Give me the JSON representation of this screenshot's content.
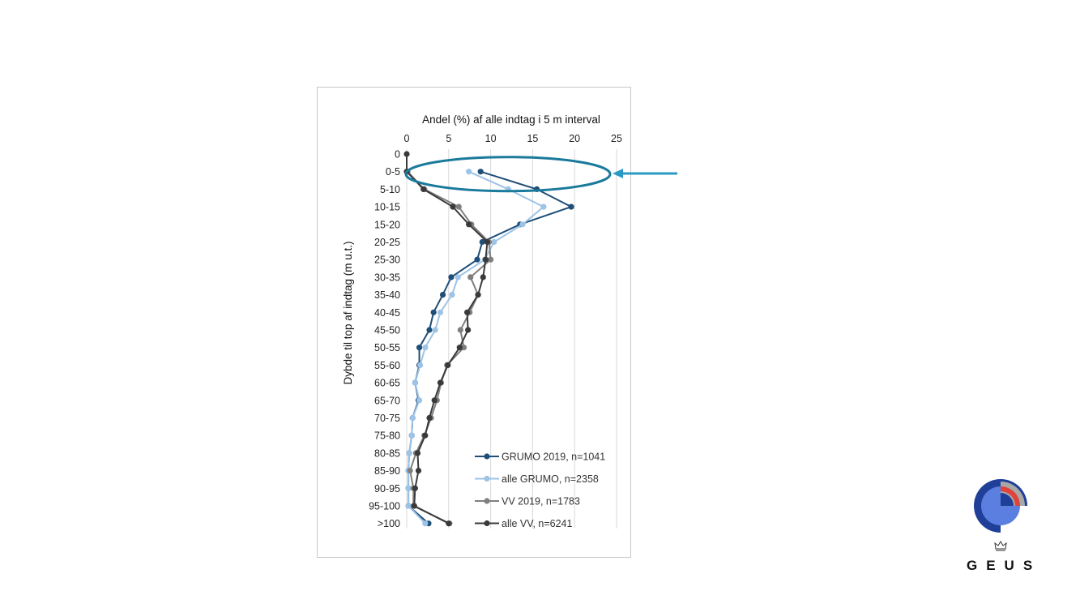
{
  "chart_data": {
    "type": "line",
    "orientation": "horizontal-values-vertical-categories",
    "title": "Andel (%) af alle indtag i 5 m interval",
    "xlabel": "Andel (%) af alle indtag i 5 m interval",
    "ylabel": "Dybde til top af indtag (m u.t.)",
    "xlim": [
      0,
      25
    ],
    "xticks": [
      0,
      5,
      10,
      15,
      20,
      25
    ],
    "x_axis_position": "top",
    "grid": "vertical",
    "legend_position": "bottom-right",
    "categories": [
      "0",
      "0-5",
      "5-10",
      "10-15",
      "15-20",
      "20-25",
      "25-30",
      "30-35",
      "35-40",
      "40-45",
      "45-50",
      "50-55",
      "55-60",
      "60-65",
      "65-70",
      "70-75",
      "75-80",
      "80-85",
      "85-90",
      "90-95",
      "95-100",
      ">100"
    ],
    "series": [
      {
        "name": "GRUMO 2019, n=1041",
        "color": "#1f4e79",
        "values": [
          null,
          8.8,
          15.5,
          19.6,
          13.5,
          9.0,
          8.4,
          5.3,
          4.3,
          3.2,
          2.7,
          1.5,
          1.5,
          1.0,
          1.4,
          0.7,
          0.6,
          0.3,
          0.2,
          0.2,
          0.2,
          2.6
        ]
      },
      {
        "name": "alle GRUMO, n=2358",
        "color": "#9dc3e6",
        "values": [
          null,
          7.4,
          12.1,
          16.3,
          13.8,
          10.4,
          9.3,
          6.1,
          5.4,
          4.0,
          3.4,
          2.2,
          1.6,
          1.0,
          1.5,
          0.7,
          0.6,
          0.3,
          0.2,
          0.2,
          0.2,
          2.2
        ]
      },
      {
        "name": "VV 2019, n=1783",
        "color": "#7f7f7f",
        "values": [
          null,
          0.1,
          2.1,
          6.2,
          7.7,
          9.8,
          10.0,
          7.6,
          8.5,
          7.5,
          6.4,
          6.8,
          4.8,
          4.1,
          3.6,
          2.9,
          2.1,
          1.1,
          0.4,
          0.8,
          0.8,
          5.1
        ]
      },
      {
        "name": "alle VV, n=6241",
        "color": "#3a3a3a",
        "values": [
          0.0,
          0.0,
          2.0,
          5.5,
          7.4,
          9.6,
          9.4,
          9.1,
          8.5,
          7.2,
          7.3,
          6.3,
          4.9,
          4.0,
          3.3,
          2.7,
          2.2,
          1.3,
          1.4,
          1.0,
          0.9,
          5.0
        ]
      }
    ],
    "annotation": {
      "type": "ellipse-with-arrow",
      "target_category": "0-5"
    }
  },
  "colors": {
    "annotation": "#1a7a9c",
    "arrow": "#2a9ac4",
    "logo_dark": "#1f3f99",
    "logo_light": "#5b7fe0",
    "logo_red": "#e0433a",
    "logo_grey": "#a8a8a8"
  },
  "brand": {
    "name": "GEUS",
    "crown_icon": "crown-icon"
  }
}
